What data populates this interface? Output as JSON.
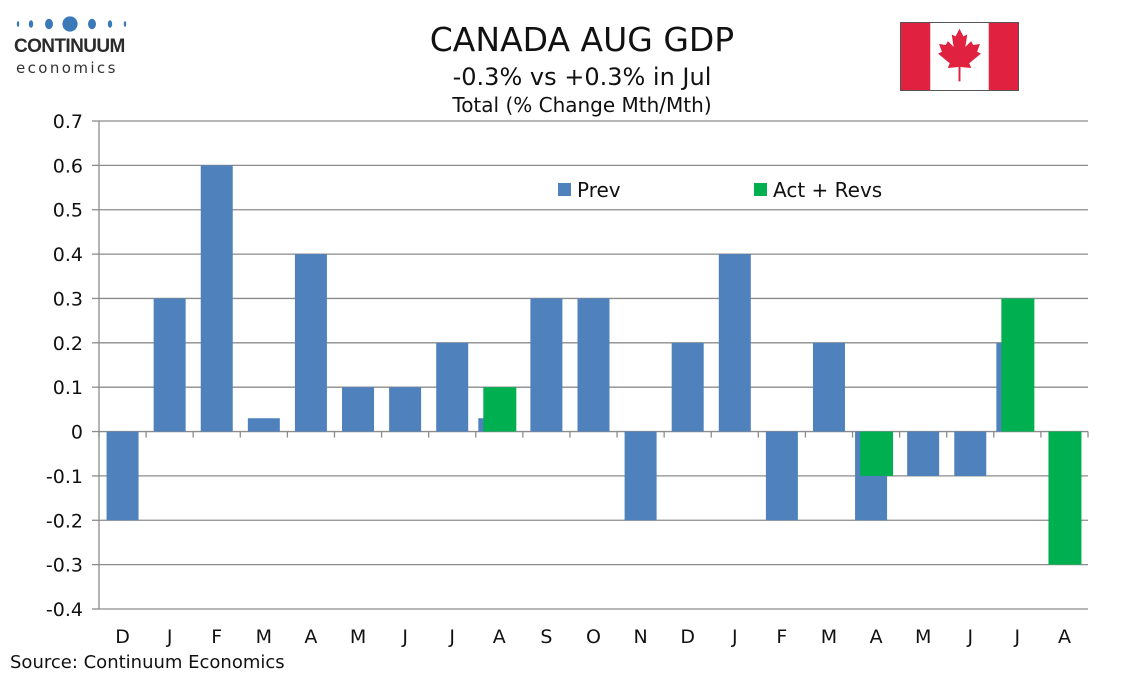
{
  "logo": {
    "line1": "CONTINUUM",
    "line2": "economics",
    "color": "#3a7ab8"
  },
  "header": {
    "title": "CANADA AUG GDP",
    "subtitle": "-0.3% vs +0.3% in Jul"
  },
  "flag": {
    "icon": "canada-flag-icon",
    "red": "#e0213f",
    "white": "#ffffff"
  },
  "source": "Source: Continuum Economics",
  "chart_data": {
    "type": "bar",
    "title": "Total (% Change Mth/Mth)",
    "xlabel": "",
    "ylabel": "",
    "ylim": [
      -0.4,
      0.7
    ],
    "yticks": [
      "0.7",
      "0.6",
      "0.5",
      "0.4",
      "0.3",
      "0.2",
      "0.1",
      "0",
      "-0.1",
      "-0.2",
      "-0.3",
      "-0.4"
    ],
    "ytick_values": [
      0.7,
      0.6,
      0.5,
      0.4,
      0.3,
      0.2,
      0.1,
      0,
      -0.1,
      -0.2,
      -0.3,
      -0.4
    ],
    "grid": true,
    "legend_position": "top-center",
    "categories": [
      "D",
      "J",
      "F",
      "M",
      "A",
      "M",
      "J",
      "J",
      "A",
      "S",
      "O",
      "N",
      "D",
      "J",
      "F",
      "M",
      "A",
      "M",
      "J",
      "J",
      "A"
    ],
    "series": [
      {
        "name": "Prev",
        "color": "#4f81bd",
        "values": [
          -0.2,
          0.3,
          0.6,
          0.03,
          0.4,
          0.1,
          0.1,
          0.2,
          0.03,
          0.3,
          0.3,
          -0.2,
          0.2,
          0.4,
          -0.2,
          0.2,
          -0.2,
          -0.1,
          -0.1,
          0.2,
          null
        ]
      },
      {
        "name": "Act + Revs",
        "color": "#00b050",
        "values": [
          null,
          null,
          null,
          null,
          null,
          null,
          null,
          null,
          0.1,
          null,
          null,
          null,
          null,
          null,
          null,
          null,
          -0.1,
          null,
          null,
          0.3,
          -0.3
        ]
      }
    ]
  }
}
